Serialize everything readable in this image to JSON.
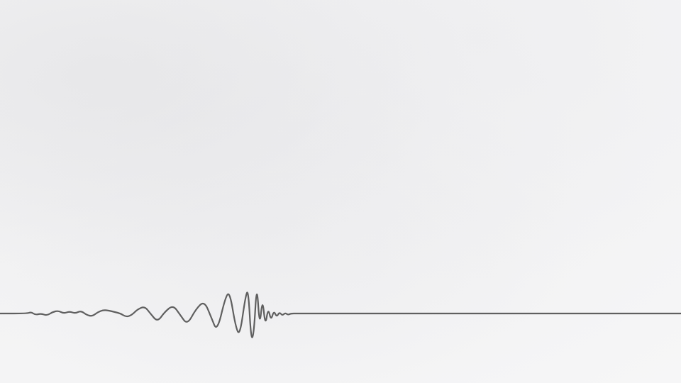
{
  "scene": {
    "subject": "waveform-line",
    "background_color": "#f3f3f4",
    "line_color": "#5f5f5f"
  }
}
